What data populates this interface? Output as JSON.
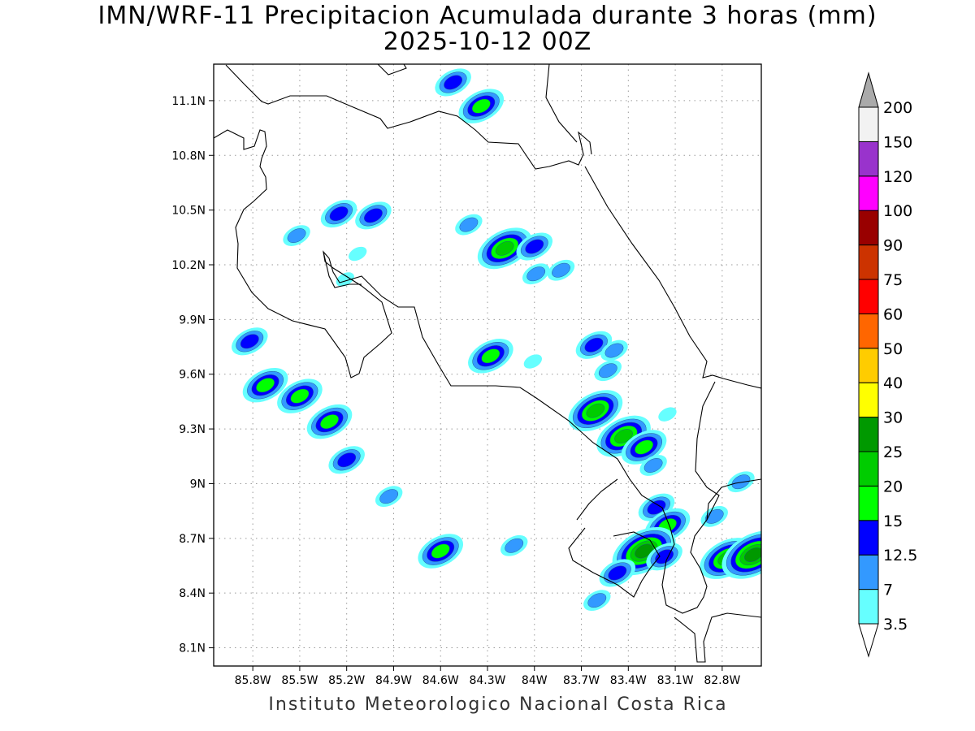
{
  "title": {
    "line1": "IMN/WRF-11 Precipitacion Acumulada durante 3 horas (mm)",
    "line2": "2025-10-12 00Z"
  },
  "footer": "Instituto Meteorologico Nacional Costa Rica",
  "map": {
    "lon_range": [
      -86.05,
      -82.55
    ],
    "lat_range": [
      8.0,
      11.3
    ],
    "lon_ticks": [
      {
        "value": -85.8,
        "label": "85.8W"
      },
      {
        "value": -85.5,
        "label": "85.5W"
      },
      {
        "value": -85.2,
        "label": "85.2W"
      },
      {
        "value": -84.9,
        "label": "84.9W"
      },
      {
        "value": -84.6,
        "label": "84.6W"
      },
      {
        "value": -84.3,
        "label": "84.3W"
      },
      {
        "value": -84.0,
        "label": "84W"
      },
      {
        "value": -83.7,
        "label": "83.7W"
      },
      {
        "value": -83.4,
        "label": "83.4W"
      },
      {
        "value": -83.1,
        "label": "83.1W"
      },
      {
        "value": -82.8,
        "label": "82.8W"
      }
    ],
    "lat_ticks": [
      {
        "value": 11.1,
        "label": "11.1N"
      },
      {
        "value": 10.8,
        "label": "10.8N"
      },
      {
        "value": 10.5,
        "label": "10.5N"
      },
      {
        "value": 10.2,
        "label": "10.2N"
      },
      {
        "value": 9.9,
        "label": "9.9N"
      },
      {
        "value": 9.6,
        "label": "9.6N"
      },
      {
        "value": 9.3,
        "label": "9.3N"
      },
      {
        "value": 9.0,
        "label": "9N"
      },
      {
        "value": 8.7,
        "label": "8.7N"
      },
      {
        "value": 8.4,
        "label": "8.4N"
      },
      {
        "value": 8.1,
        "label": "8.1N"
      }
    ],
    "grid": "dotted"
  },
  "colorbar": {
    "unit": "mm",
    "labels": [
      "3.5",
      "7",
      "12.5",
      "15",
      "20",
      "25",
      "30",
      "40",
      "50",
      "60",
      "75",
      "90",
      "100",
      "120",
      "150",
      "200"
    ],
    "colors": [
      "#66ffff",
      "#3399ff",
      "#0000ff",
      "#00ff00",
      "#00cc00",
      "#009900",
      "#ffff00",
      "#ffcc00",
      "#ff6600",
      "#ff0000",
      "#cc3300",
      "#990000",
      "#ff00ff",
      "#9933cc",
      "#f2f2f2",
      "#aaaaaa"
    ]
  },
  "precip_cells": [
    {
      "lon": -85.25,
      "lat": 10.48,
      "level": 2
    },
    {
      "lon": -85.03,
      "lat": 10.47,
      "level": 2
    },
    {
      "lon": -85.52,
      "lat": 10.36,
      "level": 1
    },
    {
      "lon": -85.13,
      "lat": 10.26,
      "level": 0
    },
    {
      "lon": -85.21,
      "lat": 10.12,
      "level": 0
    },
    {
      "lon": -85.82,
      "lat": 9.78,
      "level": 2
    },
    {
      "lon": -85.72,
      "lat": 9.54,
      "level": 3
    },
    {
      "lon": -85.5,
      "lat": 9.48,
      "level": 3
    },
    {
      "lon": -85.31,
      "lat": 9.34,
      "level": 3
    },
    {
      "lon": -85.2,
      "lat": 9.13,
      "level": 2
    },
    {
      "lon": -84.93,
      "lat": 8.93,
      "level": 1
    },
    {
      "lon": -84.6,
      "lat": 8.63,
      "level": 3
    },
    {
      "lon": -84.52,
      "lat": 11.2,
      "level": 2
    },
    {
      "lon": -84.34,
      "lat": 11.07,
      "level": 3
    },
    {
      "lon": -84.42,
      "lat": 10.42,
      "level": 1
    },
    {
      "lon": -84.19,
      "lat": 10.29,
      "level": 4
    },
    {
      "lon": -84.0,
      "lat": 10.3,
      "level": 2
    },
    {
      "lon": -83.99,
      "lat": 10.15,
      "level": 1
    },
    {
      "lon": -83.83,
      "lat": 10.17,
      "level": 1
    },
    {
      "lon": -84.28,
      "lat": 9.7,
      "level": 3
    },
    {
      "lon": -84.01,
      "lat": 9.67,
      "level": 0
    },
    {
      "lon": -83.62,
      "lat": 9.76,
      "level": 2
    },
    {
      "lon": -83.49,
      "lat": 9.73,
      "level": 1
    },
    {
      "lon": -83.53,
      "lat": 9.62,
      "level": 1
    },
    {
      "lon": -83.61,
      "lat": 9.4,
      "level": 4
    },
    {
      "lon": -83.43,
      "lat": 9.26,
      "level": 4
    },
    {
      "lon": -83.3,
      "lat": 9.2,
      "level": 3
    },
    {
      "lon": -83.24,
      "lat": 9.1,
      "level": 1
    },
    {
      "lon": -83.15,
      "lat": 9.38,
      "level": 0
    },
    {
      "lon": -83.22,
      "lat": 8.87,
      "level": 2
    },
    {
      "lon": -83.15,
      "lat": 8.77,
      "level": 3
    },
    {
      "lon": -83.3,
      "lat": 8.63,
      "level": 5
    },
    {
      "lon": -83.17,
      "lat": 8.6,
      "level": 2
    },
    {
      "lon": -83.47,
      "lat": 8.51,
      "level": 2
    },
    {
      "lon": -83.6,
      "lat": 8.36,
      "level": 1
    },
    {
      "lon": -82.85,
      "lat": 8.82,
      "level": 1
    },
    {
      "lon": -82.68,
      "lat": 9.01,
      "level": 1
    },
    {
      "lon": -82.77,
      "lat": 8.59,
      "level": 4
    },
    {
      "lon": -82.6,
      "lat": 8.61,
      "level": 5
    },
    {
      "lon": -84.13,
      "lat": 8.66,
      "level": 1
    }
  ]
}
